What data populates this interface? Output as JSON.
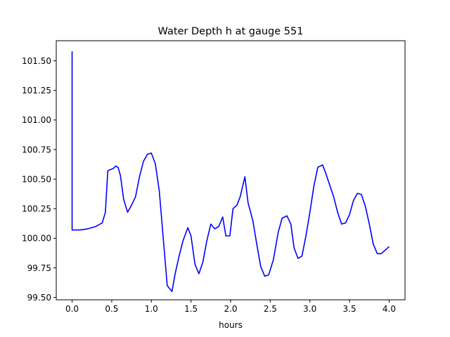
{
  "chart_data": {
    "type": "line",
    "title": "Water Depth h at gauge 551",
    "xlabel": "hours",
    "ylabel": "",
    "xlim": [
      -0.2,
      4.2
    ],
    "ylim": [
      99.48,
      101.67
    ],
    "xticks": [
      0.0,
      0.5,
      1.0,
      1.5,
      2.0,
      2.5,
      3.0,
      3.5,
      4.0
    ],
    "xtick_labels": [
      "0.0",
      "0.5",
      "1.0",
      "1.5",
      "2.0",
      "2.5",
      "3.0",
      "3.5",
      "4.0"
    ],
    "yticks": [
      99.5,
      99.75,
      100.0,
      100.25,
      100.5,
      100.75,
      101.0,
      101.25,
      101.5
    ],
    "ytick_labels": [
      "99.50",
      "99.75",
      "100.00",
      "100.25",
      "100.50",
      "100.75",
      "101.00",
      "101.25",
      "101.50"
    ],
    "grid": false,
    "series": [
      {
        "color": "#0000ff",
        "x": [
          0.0,
          0.0,
          0.01,
          0.1,
          0.2,
          0.3,
          0.38,
          0.42,
          0.45,
          0.48,
          0.52,
          0.55,
          0.58,
          0.61,
          0.65,
          0.7,
          0.75,
          0.8,
          0.85,
          0.9,
          0.95,
          1.0,
          1.05,
          1.1,
          1.15,
          1.2,
          1.26,
          1.3,
          1.35,
          1.4,
          1.46,
          1.5,
          1.55,
          1.6,
          1.65,
          1.7,
          1.75,
          1.8,
          1.85,
          1.9,
          1.94,
          1.99,
          2.03,
          2.08,
          2.12,
          2.18,
          2.22,
          2.28,
          2.33,
          2.38,
          2.43,
          2.48,
          2.54,
          2.6,
          2.65,
          2.71,
          2.76,
          2.8,
          2.85,
          2.9,
          2.95,
          3.0,
          3.05,
          3.1,
          3.16,
          3.2,
          3.25,
          3.3,
          3.35,
          3.4,
          3.45,
          3.5,
          3.55,
          3.6,
          3.65,
          3.7,
          3.75,
          3.8,
          3.85,
          3.9,
          3.95,
          4.0
        ],
        "y": [
          101.58,
          100.07,
          100.07,
          100.07,
          100.08,
          100.1,
          100.13,
          100.22,
          100.57,
          100.58,
          100.59,
          100.61,
          100.6,
          100.53,
          100.33,
          100.22,
          100.28,
          100.35,
          100.52,
          100.65,
          100.71,
          100.72,
          100.63,
          100.4,
          100.0,
          99.6,
          99.55,
          99.7,
          99.85,
          99.98,
          100.09,
          100.02,
          99.78,
          99.7,
          99.8,
          99.98,
          100.12,
          100.08,
          100.1,
          100.18,
          100.02,
          100.02,
          100.25,
          100.28,
          100.35,
          100.52,
          100.3,
          100.15,
          99.95,
          99.76,
          99.68,
          99.69,
          99.82,
          100.05,
          100.17,
          100.19,
          100.12,
          99.92,
          99.83,
          99.85,
          100.02,
          100.22,
          100.44,
          100.6,
          100.62,
          100.55,
          100.45,
          100.35,
          100.22,
          100.12,
          100.13,
          100.2,
          100.32,
          100.38,
          100.37,
          100.27,
          100.12,
          99.95,
          99.87,
          99.87,
          99.9,
          99.93
        ]
      }
    ]
  }
}
